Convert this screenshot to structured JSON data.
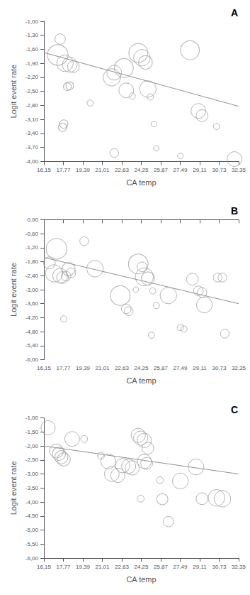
{
  "chart_data": [
    {
      "type": "bubble",
      "title": "A",
      "xlabel": "CA temp",
      "ylabel": "Logit event rate",
      "grid": false,
      "xlim": [
        16.15,
        32.35
      ],
      "xticks": [
        {
          "value": 16.15,
          "label": "16,15"
        },
        {
          "value": 17.77,
          "label": "17,77"
        },
        {
          "value": 19.39,
          "label": "19,39"
        },
        {
          "value": 21.01,
          "label": "21,01"
        },
        {
          "value": 22.63,
          "label": "22,63"
        },
        {
          "value": 24.25,
          "label": "24,25"
        },
        {
          "value": 25.87,
          "label": "25,87"
        },
        {
          "value": 27.49,
          "label": "27,49"
        },
        {
          "value": 29.11,
          "label": "29,11"
        },
        {
          "value": 30.73,
          "label": "30,73"
        },
        {
          "value": 32.35,
          "label": "32,35"
        }
      ],
      "ylim": [
        -4.0,
        -1.0
      ],
      "yticks": [
        {
          "value": -4.0,
          "label": "-4,00"
        },
        {
          "value": -3.7,
          "label": "-3,70"
        },
        {
          "value": -3.4,
          "label": "-3,40"
        },
        {
          "value": -3.1,
          "label": "-3,10"
        },
        {
          "value": -2.8,
          "label": "-2,80"
        },
        {
          "value": -2.5,
          "label": "-2,50"
        },
        {
          "value": -2.2,
          "label": "-2,20"
        },
        {
          "value": -1.9,
          "label": "-1,90"
        },
        {
          "value": -1.6,
          "label": "-1,60"
        },
        {
          "value": -1.3,
          "label": "-1,30"
        },
        {
          "value": -1.0,
          "label": "-1,00"
        }
      ],
      "series": [
        {
          "type": "line",
          "color": "#909090",
          "x": [
            16.15,
            32.35
          ],
          "values": [
            -1.67,
            -2.82
          ]
        },
        {
          "type": "bubble",
          "color": "#a0a0a0",
          "marker": "open_circle",
          "x": [
            17.5,
            17.3,
            17.9,
            18.3,
            18.6,
            18.1,
            18.3,
            17.8,
            17.7,
            20.0,
            21.8,
            22.0,
            22.0,
            22.8,
            23.0,
            23.5,
            24.0,
            24.3,
            24.6,
            24.8,
            25.0,
            25.3,
            25.5,
            27.5,
            28.3,
            29.0,
            29.3,
            30.5,
            32.0
          ],
          "values": [
            -1.38,
            -1.72,
            -1.9,
            -1.93,
            -1.97,
            -2.4,
            -2.38,
            -3.2,
            -3.27,
            -2.75,
            -2.2,
            -2.1,
            -3.82,
            -2.0,
            -2.48,
            -2.6,
            -1.68,
            -1.78,
            -1.88,
            -2.45,
            -2.62,
            -3.2,
            -3.72,
            -3.88,
            -1.62,
            -2.92,
            -3.02,
            -3.25,
            -3.95
          ],
          "sizes": [
            14,
            55,
            35,
            28,
            18,
            8,
            8,
            9,
            9,
            5,
            38,
            28,
            10,
            46,
            28,
            5,
            46,
            35,
            24,
            35,
            5,
            4,
            4,
            4,
            46,
            28,
            18,
            5,
            28
          ]
        }
      ]
    },
    {
      "type": "bubble",
      "title": "B",
      "xlabel": "CA temp",
      "ylabel": "Logit event rate",
      "grid": false,
      "xlim": [
        16.15,
        32.35
      ],
      "xticks": [
        {
          "value": 16.15,
          "label": "16,15"
        },
        {
          "value": 17.77,
          "label": "17,77"
        },
        {
          "value": 19.39,
          "label": "19,39"
        },
        {
          "value": 21.01,
          "label": "21,01"
        },
        {
          "value": 22.63,
          "label": "22,63"
        },
        {
          "value": 24.25,
          "label": "24,25"
        },
        {
          "value": 25.87,
          "label": "25,87"
        },
        {
          "value": 27.49,
          "label": "27,49"
        },
        {
          "value": 29.11,
          "label": "29,11"
        },
        {
          "value": 30.73,
          "label": "30,73"
        },
        {
          "value": 32.35,
          "label": "32,35"
        }
      ],
      "ylim": [
        -6.0,
        0.0
      ],
      "yticks": [
        {
          "value": -6.0,
          "label": "-6,00"
        },
        {
          "value": -5.4,
          "label": "-5,40"
        },
        {
          "value": -4.8,
          "label": "-4,80"
        },
        {
          "value": -4.2,
          "label": "-4,20"
        },
        {
          "value": -3.6,
          "label": "-3,60"
        },
        {
          "value": -3.0,
          "label": "-3,00"
        },
        {
          "value": -2.4,
          "label": "-2,40"
        },
        {
          "value": -1.8,
          "label": "-1,80"
        },
        {
          "value": -1.2,
          "label": "-1,20"
        },
        {
          "value": -0.6,
          "label": "-0,60"
        },
        {
          "value": 0.0,
          "label": "0,00"
        }
      ],
      "series": [
        {
          "type": "line",
          "color": "#909090",
          "x": [
            16.15,
            32.35
          ],
          "values": [
            -1.62,
            -3.6
          ]
        },
        {
          "type": "bubble",
          "color": "#a0a0a0",
          "marker": "open_circle",
          "x": [
            16.6,
            17.0,
            17.2,
            17.5,
            17.7,
            18.0,
            18.2,
            18.4,
            17.8,
            19.5,
            20.4,
            22.5,
            23.0,
            23.2,
            23.8,
            24.0,
            24.3,
            24.5,
            24.8,
            25.2,
            25.1,
            25.5,
            26.5,
            27.5,
            27.8,
            28.5,
            29.0,
            29.3,
            29.5,
            30.6,
            31.0,
            31.2
          ],
          "values": [
            -1.85,
            -2.3,
            -1.25,
            -2.4,
            -2.48,
            -2.42,
            -2.12,
            -2.28,
            -4.25,
            -0.92,
            -2.1,
            -3.25,
            -3.82,
            -3.92,
            -3.0,
            -1.9,
            -2.02,
            -2.45,
            -2.52,
            -3.05,
            -4.95,
            -3.68,
            -3.25,
            -4.62,
            -4.68,
            -2.55,
            -3.05,
            -3.12,
            -3.65,
            -2.48,
            -2.48,
            -4.88
          ],
          "sizes": [
            18,
            38,
            55,
            28,
            18,
            12,
            22,
            12,
            5,
            10,
            35,
            50,
            12,
            10,
            4,
            50,
            12,
            42,
            22,
            5,
            5,
            5,
            35,
            5,
            5,
            18,
            12,
            12,
            32,
            10,
            10,
            10
          ]
        }
      ]
    },
    {
      "type": "bubble",
      "title": "C",
      "xlabel": "CA temp",
      "ylabel": "Logit event rate",
      "grid": false,
      "xlim": [
        16.15,
        32.35
      ],
      "xticks": [
        {
          "value": 16.15,
          "label": "16,15"
        },
        {
          "value": 17.77,
          "label": "17,77"
        },
        {
          "value": 19.39,
          "label": "19,39"
        },
        {
          "value": 21.01,
          "label": "21,01"
        },
        {
          "value": 22.63,
          "label": "22,63"
        },
        {
          "value": 24.25,
          "label": "24,25"
        },
        {
          "value": 25.87,
          "label": "25,87"
        },
        {
          "value": 27.49,
          "label": "27,49"
        },
        {
          "value": 29.11,
          "label": "29,11"
        },
        {
          "value": 30.73,
          "label": "30,73"
        },
        {
          "value": 32.35,
          "label": "32,35"
        }
      ],
      "ylim": [
        -6.0,
        -1.0
      ],
      "yticks": [
        {
          "value": -6.0,
          "label": "-6,00"
        },
        {
          "value": -5.5,
          "label": "-5,50"
        },
        {
          "value": -5.0,
          "label": "-5,00"
        },
        {
          "value": -4.5,
          "label": "-4,50"
        },
        {
          "value": -4.0,
          "label": "-4,00"
        },
        {
          "value": -3.5,
          "label": "-3,50"
        },
        {
          "value": -3.0,
          "label": "-3,00"
        },
        {
          "value": -2.5,
          "label": "-2,50"
        },
        {
          "value": -2.0,
          "label": "-2,00"
        },
        {
          "value": -1.5,
          "label": "-1,50"
        },
        {
          "value": -1.0,
          "label": "-1,00"
        }
      ],
      "series": [
        {
          "type": "line",
          "color": "#909090",
          "x": [
            16.15,
            32.35
          ],
          "values": [
            -2.0,
            -3.0
          ]
        },
        {
          "type": "bubble",
          "color": "#a0a0a0",
          "marker": "open_circle",
          "x": [
            16.5,
            17.2,
            17.4,
            17.6,
            17.8,
            18.5,
            19.5,
            20.9,
            21.5,
            21.8,
            22.3,
            22.7,
            23.2,
            23.5,
            24.0,
            24.2,
            24.5,
            24.8,
            24.5,
            24.7,
            24.2,
            25.8,
            26.0,
            26.5,
            27.5,
            28.8,
            29.3,
            30.5,
            31.0
          ],
          "values": [
            -1.35,
            -2.18,
            -2.28,
            -2.4,
            -2.48,
            -1.75,
            -1.75,
            -2.35,
            -2.55,
            -3.0,
            -3.05,
            -2.7,
            -2.72,
            -2.78,
            -1.62,
            -1.72,
            -1.8,
            -2.08,
            -2.55,
            -2.62,
            -3.88,
            -3.22,
            -3.9,
            -4.7,
            -3.25,
            -2.75,
            -3.88,
            -3.85,
            -3.88
          ],
          "sizes": [
            26,
            24,
            22,
            22,
            22,
            28,
            6,
            6,
            28,
            28,
            26,
            26,
            26,
            26,
            26,
            26,
            26,
            18,
            26,
            18,
            6,
            6,
            16,
            14,
            32,
            32,
            18,
            35,
            35
          ]
        }
      ]
    }
  ]
}
